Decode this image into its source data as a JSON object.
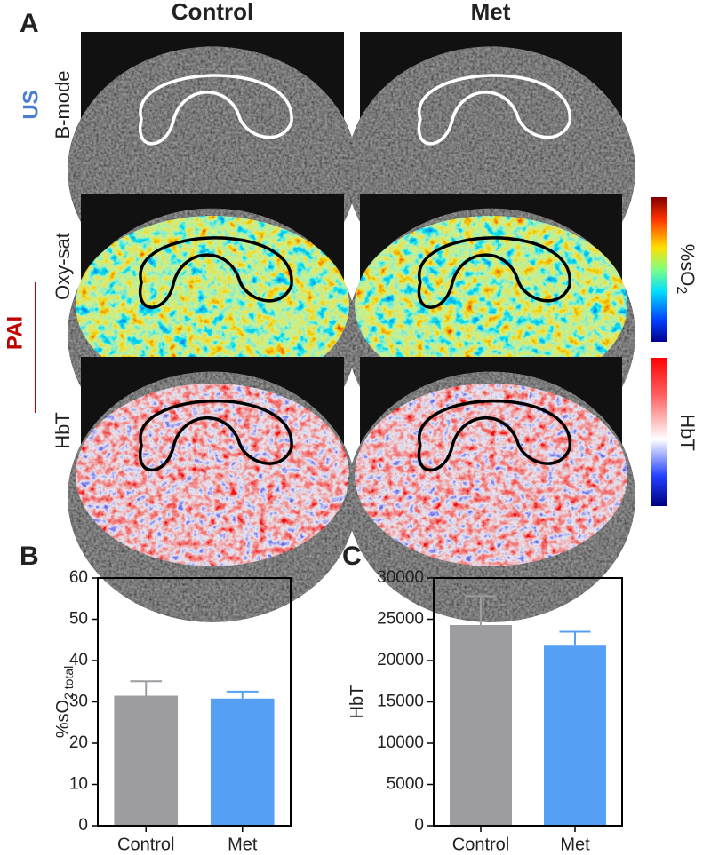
{
  "panel_a": {
    "label": "A",
    "columns": [
      "Control",
      "Met"
    ],
    "us_label": "US",
    "pai_label": "PAI",
    "rows": [
      "B-mode",
      "Oxy-sat",
      "HbT"
    ],
    "colorbar_labels": [
      [
        "%sO",
        "2"
      ],
      "HbT"
    ]
  },
  "chart_data": [
    {
      "type": "bar",
      "panel_label": "B",
      "y_label": [
        "%sO",
        "2 total"
      ],
      "categories": [
        "Control",
        "Met"
      ],
      "values": [
        31.5,
        30.8
      ],
      "errors": [
        3.5,
        1.7
      ],
      "colors": [
        "#9d9ca1",
        "#55a0f5"
      ],
      "ylim": [
        0,
        60
      ],
      "yticks": [
        0,
        10,
        20,
        30,
        40,
        50,
        60
      ]
    },
    {
      "type": "bar",
      "panel_label": "C",
      "y_label": [
        "HbT"
      ],
      "categories": [
        "Control",
        "Met"
      ],
      "values": [
        24300,
        21800
      ],
      "errors": [
        3500,
        1700
      ],
      "colors": [
        "#9d9ca1",
        "#55a0f5"
      ],
      "ylim": [
        0,
        30000
      ],
      "yticks": [
        0,
        5000,
        10000,
        15000,
        20000,
        25000,
        30000
      ]
    }
  ]
}
